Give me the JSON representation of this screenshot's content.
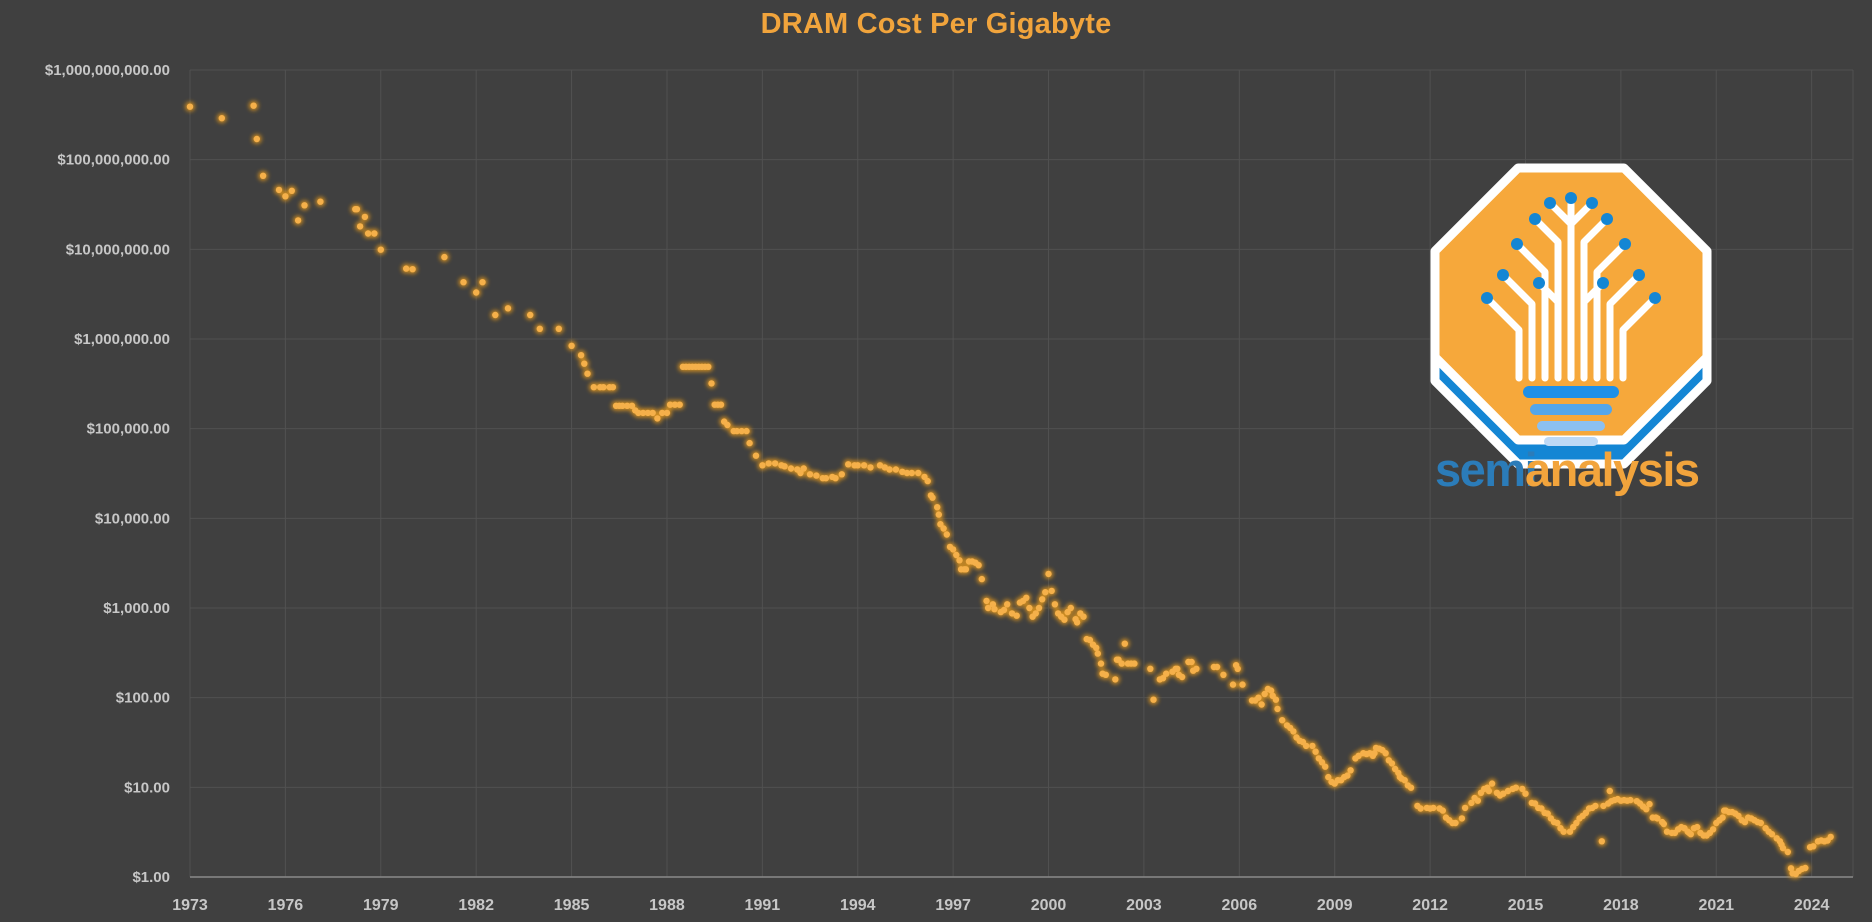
{
  "page": {
    "background": "#404040"
  },
  "header": {
    "title": "DRAM Cost Per Gigabyte"
  },
  "logo": {
    "wordmark_semi": "semi",
    "wordmark_analysis": "analysis",
    "octagon_color": "#F6A83B",
    "accent_blue": "#1486D4",
    "bar_colors": [
      "#1E90E8",
      "#54A6EA",
      "#8CC0F0",
      "#BDD9F6"
    ],
    "semi_color": "#2B7CB9",
    "analysis_color": "#F2A43C"
  },
  "chart_data": {
    "type": "scatter",
    "title": "DRAM Cost Per Gigabyte",
    "xlabel": "",
    "ylabel": "",
    "grid": true,
    "legend": false,
    "x_axis": {
      "min": 1973,
      "max": 2025.3,
      "ticks": [
        1973,
        1976,
        1979,
        1982,
        1985,
        1988,
        1991,
        1994,
        1997,
        2000,
        2003,
        2006,
        2009,
        2012,
        2015,
        2018,
        2021,
        2024
      ],
      "tick_labels": [
        "1973",
        "1976",
        "1979",
        "1982",
        "1985",
        "1988",
        "1991",
        "1994",
        "1997",
        "2000",
        "2003",
        "2006",
        "2009",
        "2012",
        "2015",
        "2018",
        "2021",
        "2024"
      ]
    },
    "y_axis": {
      "scale": "log",
      "min": 1,
      "max": 1000000000,
      "tick_values": [
        1000000000,
        100000000,
        10000000,
        1000000,
        100000,
        10000,
        1000,
        100,
        10,
        1
      ],
      "tick_labels": [
        "$1,000,000,000.00",
        "$100,000,000.00",
        "$10,000,000.00",
        "$1,000,000.00",
        "$100,000.00",
        "$10,000.00",
        "$1,000.00",
        "$100.00",
        "$10.00",
        "$1.00"
      ]
    },
    "colors": {
      "background": "#404040",
      "gridline": "#515151",
      "axis_line": "#8A8A8A",
      "tick_text": "#C7C7C7",
      "title": "#F1A43C",
      "point_core": "#F5B04A",
      "point_glow": "#DD941F"
    },
    "points": [
      [
        1973.0,
        390000000
      ],
      [
        1974.0,
        290000000
      ],
      [
        1975.0,
        400000000
      ],
      [
        1975.1,
        170000000
      ],
      [
        1975.3,
        66000000
      ],
      [
        1975.8,
        46000000
      ],
      [
        1976.0,
        39000000
      ],
      [
        1976.2,
        45000000
      ],
      [
        1976.4,
        21000000
      ],
      [
        1976.6,
        31000000
      ],
      [
        1977.1,
        34000000
      ],
      [
        1978.2,
        28000000
      ],
      [
        1978.25,
        28000000
      ],
      [
        1978.35,
        18000000
      ],
      [
        1978.5,
        23000000
      ],
      [
        1978.6,
        15000000
      ],
      [
        1978.8,
        15000000
      ],
      [
        1979.0,
        9900000
      ],
      [
        1979.8,
        6100000
      ],
      [
        1980.0,
        6000000
      ],
      [
        1981.0,
        8200000
      ],
      [
        1981.6,
        4300000
      ],
      [
        1982.0,
        3300000
      ],
      [
        1982.2,
        4300000
      ],
      [
        1982.6,
        1850000
      ],
      [
        1983.0,
        2200000
      ],
      [
        1983.7,
        1850000
      ],
      [
        1984.0,
        1300000
      ],
      [
        1984.6,
        1300000
      ],
      [
        1985.0,
        840000
      ],
      [
        1985.3,
        660000
      ],
      [
        1985.4,
        530000
      ],
      [
        1985.5,
        410000
      ],
      [
        1985.7,
        290000
      ],
      [
        1985.9,
        290000
      ],
      [
        1986.0,
        290000
      ],
      [
        1986.2,
        290000
      ],
      [
        1986.3,
        290000
      ],
      [
        1986.4,
        180000
      ],
      [
        1986.5,
        180000
      ],
      [
        1986.6,
        180000
      ],
      [
        1986.75,
        180000
      ],
      [
        1986.9,
        180000
      ],
      [
        1987.0,
        160000
      ],
      [
        1987.1,
        150000
      ],
      [
        1987.25,
        150000
      ],
      [
        1987.4,
        150000
      ],
      [
        1987.55,
        150000
      ],
      [
        1987.7,
        130000
      ],
      [
        1987.85,
        150000
      ],
      [
        1988.0,
        150000
      ],
      [
        1988.1,
        185000
      ],
      [
        1988.25,
        185000
      ],
      [
        1988.4,
        185000
      ],
      [
        1988.5,
        490000
      ],
      [
        1988.6,
        490000
      ],
      [
        1988.7,
        490000
      ],
      [
        1988.8,
        490000
      ],
      [
        1988.9,
        490000
      ],
      [
        1989.0,
        490000
      ],
      [
        1989.1,
        490000
      ],
      [
        1989.2,
        490000
      ],
      [
        1989.3,
        490000
      ],
      [
        1989.4,
        320000
      ],
      [
        1989.5,
        185000
      ],
      [
        1989.6,
        185000
      ],
      [
        1989.7,
        185000
      ],
      [
        1989.8,
        120000
      ],
      [
        1989.9,
        110000
      ],
      [
        1990.1,
        94000
      ],
      [
        1990.2,
        94000
      ],
      [
        1990.35,
        94000
      ],
      [
        1990.5,
        94000
      ],
      [
        1990.6,
        69000
      ],
      [
        1990.8,
        50000
      ],
      [
        1991.0,
        39000
      ],
      [
        1991.2,
        41000
      ],
      [
        1991.4,
        41000
      ],
      [
        1991.6,
        39000
      ],
      [
        1991.7,
        38000
      ],
      [
        1991.9,
        36000
      ],
      [
        1992.1,
        35000
      ],
      [
        1992.2,
        32000
      ],
      [
        1992.3,
        36000
      ],
      [
        1992.5,
        31000
      ],
      [
        1992.7,
        30000
      ],
      [
        1992.9,
        28000
      ],
      [
        1993.0,
        28000
      ],
      [
        1993.2,
        29000
      ],
      [
        1993.3,
        28000
      ],
      [
        1993.5,
        31000
      ],
      [
        1993.7,
        40000
      ],
      [
        1993.9,
        39000
      ],
      [
        1994.0,
        39000
      ],
      [
        1994.2,
        39000
      ],
      [
        1994.4,
        37000
      ],
      [
        1994.7,
        39000
      ],
      [
        1994.85,
        37000
      ],
      [
        1995.0,
        35000
      ],
      [
        1995.2,
        35000
      ],
      [
        1995.4,
        33000
      ],
      [
        1995.55,
        32000
      ],
      [
        1995.7,
        32000
      ],
      [
        1995.9,
        32000
      ],
      [
        1996.1,
        29000
      ],
      [
        1996.2,
        26000
      ],
      [
        1996.3,
        18000
      ],
      [
        1996.35,
        17000
      ],
      [
        1996.5,
        13300
      ],
      [
        1996.55,
        11000
      ],
      [
        1996.6,
        8600
      ],
      [
        1996.7,
        7700
      ],
      [
        1996.8,
        6600
      ],
      [
        1996.9,
        4800
      ],
      [
        1997.0,
        4500
      ],
      [
        1997.1,
        3900
      ],
      [
        1997.2,
        3400
      ],
      [
        1997.25,
        2700
      ],
      [
        1997.35,
        2700
      ],
      [
        1997.4,
        2700
      ],
      [
        1997.5,
        3300
      ],
      [
        1997.6,
        3300
      ],
      [
        1997.7,
        3200
      ],
      [
        1997.8,
        3000
      ],
      [
        1997.9,
        2100
      ],
      [
        1998.05,
        1200
      ],
      [
        1998.1,
        1000
      ],
      [
        1998.25,
        1100
      ],
      [
        1998.3,
        970
      ],
      [
        1998.5,
        900
      ],
      [
        1998.6,
        950
      ],
      [
        1998.7,
        1100
      ],
      [
        1998.85,
        870
      ],
      [
        1999.0,
        820
      ],
      [
        1999.1,
        1150
      ],
      [
        1999.2,
        1200
      ],
      [
        1999.3,
        1300
      ],
      [
        1999.4,
        1000
      ],
      [
        1999.5,
        800
      ],
      [
        1999.6,
        870
      ],
      [
        1999.7,
        1000
      ],
      [
        1999.8,
        1250
      ],
      [
        1999.9,
        1500
      ],
      [
        2000.0,
        2400
      ],
      [
        2000.1,
        1550
      ],
      [
        2000.2,
        1100
      ],
      [
        2000.3,
        870
      ],
      [
        2000.4,
        800
      ],
      [
        2000.5,
        740
      ],
      [
        2000.6,
        900
      ],
      [
        2000.7,
        1000
      ],
      [
        2000.85,
        750
      ],
      [
        2000.9,
        690
      ],
      [
        2001.0,
        870
      ],
      [
        2001.1,
        800
      ],
      [
        2001.2,
        450
      ],
      [
        2001.3,
        440
      ],
      [
        2001.4,
        390
      ],
      [
        2001.5,
        360
      ],
      [
        2001.55,
        310
      ],
      [
        2001.65,
        240
      ],
      [
        2001.7,
        185
      ],
      [
        2001.8,
        180
      ],
      [
        2002.1,
        160
      ],
      [
        2002.15,
        265
      ],
      [
        2002.2,
        265
      ],
      [
        2002.3,
        240
      ],
      [
        2002.4,
        400
      ],
      [
        2002.5,
        240
      ],
      [
        2002.6,
        240
      ],
      [
        2002.7,
        240
      ],
      [
        2003.2,
        210
      ],
      [
        2003.3,
        95
      ],
      [
        2003.5,
        160
      ],
      [
        2003.6,
        165
      ],
      [
        2003.7,
        185
      ],
      [
        2003.9,
        195
      ],
      [
        2004.0,
        210
      ],
      [
        2004.05,
        210
      ],
      [
        2004.1,
        180
      ],
      [
        2004.2,
        170
      ],
      [
        2004.4,
        250
      ],
      [
        2004.5,
        250
      ],
      [
        2004.55,
        200
      ],
      [
        2004.65,
        210
      ],
      [
        2005.2,
        220
      ],
      [
        2005.3,
        220
      ],
      [
        2005.5,
        180
      ],
      [
        2005.8,
        140
      ],
      [
        2005.9,
        230
      ],
      [
        2005.95,
        210
      ],
      [
        2006.1,
        140
      ],
      [
        2006.4,
        93
      ],
      [
        2006.5,
        93
      ],
      [
        2006.6,
        100
      ],
      [
        2006.7,
        84
      ],
      [
        2006.8,
        110
      ],
      [
        2006.9,
        125
      ],
      [
        2007.0,
        120
      ],
      [
        2007.05,
        105
      ],
      [
        2007.15,
        95
      ],
      [
        2007.2,
        75
      ],
      [
        2007.35,
        56
      ],
      [
        2007.5,
        49
      ],
      [
        2007.6,
        46
      ],
      [
        2007.7,
        42
      ],
      [
        2007.8,
        36
      ],
      [
        2007.9,
        33
      ],
      [
        2008.0,
        32
      ],
      [
        2008.1,
        29
      ],
      [
        2008.3,
        29
      ],
      [
        2008.4,
        25
      ],
      [
        2008.5,
        21
      ],
      [
        2008.6,
        19
      ],
      [
        2008.7,
        17
      ],
      [
        2008.8,
        13
      ],
      [
        2008.9,
        11.5
      ],
      [
        2009.0,
        11
      ],
      [
        2009.1,
        12
      ],
      [
        2009.2,
        12
      ],
      [
        2009.3,
        13
      ],
      [
        2009.4,
        13.5
      ],
      [
        2009.5,
        15.5
      ],
      [
        2009.65,
        21
      ],
      [
        2009.75,
        22.5
      ],
      [
        2009.9,
        24
      ],
      [
        2010.0,
        23.5
      ],
      [
        2010.1,
        24
      ],
      [
        2010.2,
        22.5
      ],
      [
        2010.25,
        24
      ],
      [
        2010.3,
        27.5
      ],
      [
        2010.4,
        27
      ],
      [
        2010.5,
        26
      ],
      [
        2010.6,
        24
      ],
      [
        2010.7,
        20
      ],
      [
        2010.8,
        18.5
      ],
      [
        2010.9,
        16
      ],
      [
        2011.0,
        14.5
      ],
      [
        2011.05,
        13
      ],
      [
        2011.1,
        12.5
      ],
      [
        2011.2,
        12
      ],
      [
        2011.3,
        10.5
      ],
      [
        2011.4,
        9.9
      ],
      [
        2011.6,
        6.2
      ],
      [
        2011.7,
        5.8
      ],
      [
        2011.9,
        5.9
      ],
      [
        2012.0,
        5.8
      ],
      [
        2012.1,
        5.9
      ],
      [
        2012.3,
        5.8
      ],
      [
        2012.4,
        5.5
      ],
      [
        2012.5,
        4.6
      ],
      [
        2012.6,
        4.3
      ],
      [
        2012.7,
        4.0
      ],
      [
        2012.8,
        4.0
      ],
      [
        2013.0,
        4.5
      ],
      [
        2013.1,
        5.9
      ],
      [
        2013.3,
        6.7
      ],
      [
        2013.4,
        7.6
      ],
      [
        2013.5,
        7.1
      ],
      [
        2013.6,
        8.7
      ],
      [
        2013.7,
        9.6
      ],
      [
        2013.8,
        9.9
      ],
      [
        2013.85,
        9.1
      ],
      [
        2013.95,
        11
      ],
      [
        2014.1,
        8.7
      ],
      [
        2014.2,
        8.1
      ],
      [
        2014.3,
        8.5
      ],
      [
        2014.45,
        9.1
      ],
      [
        2014.6,
        9.6
      ],
      [
        2014.7,
        9.9
      ],
      [
        2014.9,
        9.6
      ],
      [
        2015.0,
        8.5
      ],
      [
        2015.2,
        6.7
      ],
      [
        2015.3,
        6.6
      ],
      [
        2015.4,
        5.9
      ],
      [
        2015.5,
        5.8
      ],
      [
        2015.6,
        5.2
      ],
      [
        2015.7,
        5.1
      ],
      [
        2015.8,
        4.5
      ],
      [
        2015.9,
        4.1
      ],
      [
        2016.0,
        4.0
      ],
      [
        2016.1,
        3.5
      ],
      [
        2016.2,
        3.2
      ],
      [
        2016.4,
        3.2
      ],
      [
        2016.5,
        3.6
      ],
      [
        2016.6,
        4.0
      ],
      [
        2016.7,
        4.5
      ],
      [
        2016.8,
        4.8
      ],
      [
        2016.9,
        5.2
      ],
      [
        2017.0,
        5.8
      ],
      [
        2017.1,
        5.9
      ],
      [
        2017.2,
        6.2
      ],
      [
        2017.4,
        2.5
      ],
      [
        2017.45,
        6.2
      ],
      [
        2017.6,
        6.6
      ],
      [
        2017.65,
        9.1
      ],
      [
        2017.7,
        7.0
      ],
      [
        2017.8,
        7.2
      ],
      [
        2017.9,
        7.4
      ],
      [
        2018.0,
        7.1
      ],
      [
        2018.1,
        7.2
      ],
      [
        2018.2,
        7.1
      ],
      [
        2018.3,
        7.2
      ],
      [
        2018.5,
        7.0
      ],
      [
        2018.6,
        6.6
      ],
      [
        2018.7,
        6.1
      ],
      [
        2018.8,
        5.7
      ],
      [
        2018.9,
        6.5
      ],
      [
        2019.0,
        4.6
      ],
      [
        2019.1,
        4.6
      ],
      [
        2019.15,
        4.5
      ],
      [
        2019.3,
        4.1
      ],
      [
        2019.35,
        3.9
      ],
      [
        2019.45,
        3.2
      ],
      [
        2019.6,
        3.1
      ],
      [
        2019.7,
        3.1
      ],
      [
        2019.8,
        3.4
      ],
      [
        2019.9,
        3.6
      ],
      [
        2020.0,
        3.5
      ],
      [
        2020.1,
        3.2
      ],
      [
        2020.15,
        3.1
      ],
      [
        2020.2,
        3.0
      ],
      [
        2020.3,
        3.5
      ],
      [
        2020.4,
        3.6
      ],
      [
        2020.5,
        3.1
      ],
      [
        2020.6,
        2.9
      ],
      [
        2020.7,
        2.9
      ],
      [
        2020.8,
        3.1
      ],
      [
        2020.9,
        3.4
      ],
      [
        2021.0,
        4.0
      ],
      [
        2021.1,
        4.3
      ],
      [
        2021.2,
        4.6
      ],
      [
        2021.25,
        5.5
      ],
      [
        2021.3,
        5.5
      ],
      [
        2021.4,
        5.3
      ],
      [
        2021.5,
        5.3
      ],
      [
        2021.6,
        5.1
      ],
      [
        2021.7,
        4.8
      ],
      [
        2021.8,
        4.3
      ],
      [
        2021.9,
        4.1
      ],
      [
        2022.0,
        4.6
      ],
      [
        2022.1,
        4.5
      ],
      [
        2022.2,
        4.3
      ],
      [
        2022.3,
        4.1
      ],
      [
        2022.4,
        4.0
      ],
      [
        2022.55,
        3.5
      ],
      [
        2022.65,
        3.2
      ],
      [
        2022.75,
        3.0
      ],
      [
        2022.9,
        2.7
      ],
      [
        2023.0,
        2.5
      ],
      [
        2023.05,
        2.3
      ],
      [
        2023.1,
        2.1
      ],
      [
        2023.25,
        1.9
      ],
      [
        2023.35,
        1.25
      ],
      [
        2023.4,
        1.1
      ],
      [
        2023.5,
        1.08
      ],
      [
        2023.6,
        1.17
      ],
      [
        2023.7,
        1.23
      ],
      [
        2023.8,
        1.26
      ],
      [
        2023.95,
        2.15
      ],
      [
        2024.05,
        2.2
      ],
      [
        2024.2,
        2.5
      ],
      [
        2024.3,
        2.55
      ],
      [
        2024.4,
        2.5
      ],
      [
        2024.5,
        2.55
      ],
      [
        2024.6,
        2.8
      ]
    ]
  }
}
